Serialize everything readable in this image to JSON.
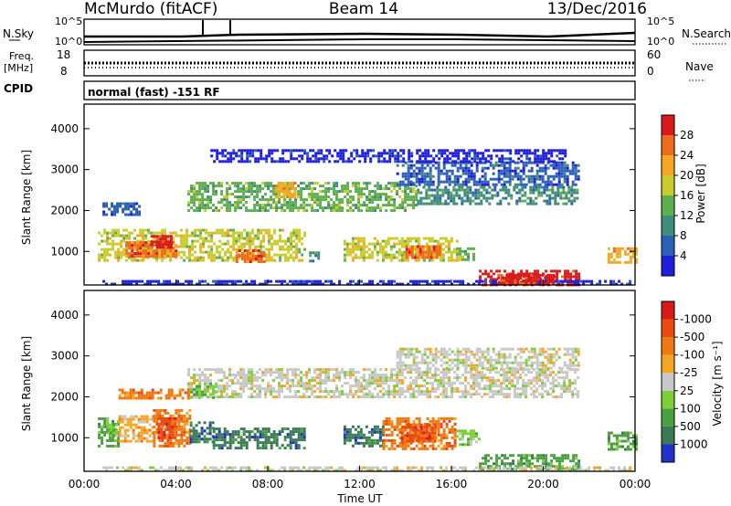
{
  "header": {
    "station": "McMurdo (fitACF)",
    "beam": "Beam 14",
    "date": "13/Dec/2016"
  },
  "sky_panel": {
    "left_label": "N.Sky",
    "right_label": "N.Search",
    "left_ticks": [
      "10^5",
      "10^0"
    ],
    "right_ticks": [
      "10^5",
      "10^0"
    ]
  },
  "freq_panel": {
    "left_label_1": "Freq.",
    "left_label_2": "[MHz]",
    "right_label": "Nave",
    "left_ticks": [
      "18",
      "8"
    ],
    "right_ticks": [
      "60",
      "0"
    ]
  },
  "cpid_panel": {
    "label": "CPID",
    "text": "normal (fast) -151 RF"
  },
  "chart_data": [
    {
      "type": "heatmap",
      "name": "power",
      "ylabel": "Slant Range [km]",
      "yticks": [
        1000,
        2000,
        3000,
        4000
      ],
      "ylim": [
        180,
        4600
      ],
      "xlim_hours": [
        0,
        24
      ],
      "colorbar": {
        "label": "Power [dB]",
        "ticks": [
          "4",
          "8",
          "12",
          "16",
          "20",
          "24",
          "28"
        ],
        "colors": [
          "#1e1edc",
          "#2c5fb8",
          "#3f8c7a",
          "#5fae50",
          "#c8cc2c",
          "#f5a623",
          "#ef6b1c",
          "#d81a1a"
        ]
      },
      "bands": [
        {
          "x": [
            0.6,
            9.6
          ],
          "y": [
            780,
            1550
          ],
          "color_index": 4
        },
        {
          "x": [
            9.8,
            10.2
          ],
          "y": [
            780,
            1000
          ],
          "color_index": 2
        },
        {
          "x": [
            11.3,
            16.2
          ],
          "y": [
            780,
            1350
          ],
          "color_index": 4
        },
        {
          "x": [
            16.2,
            17.0
          ],
          "y": [
            780,
            1100
          ],
          "color_index": 3
        },
        {
          "x": [
            22.8,
            24.0
          ],
          "y": [
            700,
            1100
          ],
          "color_index": 5
        },
        {
          "x": [
            17.2,
            21.5
          ],
          "y": [
            200,
            550
          ],
          "color_index": 7
        },
        {
          "x": [
            0.8,
            23.8
          ],
          "y": [
            180,
            300
          ],
          "color_index": 0
        },
        {
          "x": [
            0.8,
            2.4
          ],
          "y": [
            1900,
            2200
          ],
          "color_index": 1
        },
        {
          "x": [
            4.5,
            14.5
          ],
          "y": [
            2000,
            2700
          ],
          "color_index": 3
        },
        {
          "x": [
            14.5,
            21.5
          ],
          "y": [
            2150,
            2600
          ],
          "color_index": 2
        },
        {
          "x": [
            13.6,
            21.5
          ],
          "y": [
            2600,
            3200
          ],
          "color_index": 1
        },
        {
          "x": [
            5.5,
            21.0
          ],
          "y": [
            3200,
            3500
          ],
          "color_index": 0
        }
      ],
      "hotspots": [
        {
          "x": [
            1.8,
            4.0
          ],
          "y": [
            850,
            1250
          ],
          "color_index": 6
        },
        {
          "x": [
            2.9,
            3.8
          ],
          "y": [
            1100,
            1400
          ],
          "color_index": 7
        },
        {
          "x": [
            6.6,
            7.8
          ],
          "y": [
            750,
            1050
          ],
          "color_index": 6
        },
        {
          "x": [
            8.3,
            9.2
          ],
          "y": [
            2300,
            2700
          ],
          "color_index": 5
        },
        {
          "x": [
            14.0,
            15.5
          ],
          "y": [
            850,
            1150
          ],
          "color_index": 6
        },
        {
          "x": [
            18.0,
            20.5
          ],
          "y": [
            220,
            450
          ],
          "color_index": 7
        }
      ]
    },
    {
      "type": "heatmap",
      "name": "velocity",
      "ylabel": "Slant Range [km]",
      "yticks": [
        1000,
        2000,
        3000,
        4000
      ],
      "ylim": [
        180,
        4600
      ],
      "xlim_hours": [
        0,
        24
      ],
      "xlabel": "Time UT",
      "xticks": [
        "00:00",
        "04:00",
        "08:00",
        "12:00",
        "16:00",
        "20:00",
        "00:00"
      ],
      "colorbar": {
        "label": "Velocity [m s⁻¹]",
        "ticks": [
          "1000",
          "500",
          "100",
          "25",
          "-25",
          "-100",
          "-500",
          "-1000"
        ],
        "colors": [
          "#2030c8",
          "#3a7a54",
          "#4aa040",
          "#7dcf3a",
          "#c8c8c8",
          "#f5a623",
          "#f07a12",
          "#e84a12",
          "#d81a1a"
        ]
      },
      "bands": [
        {
          "x": [
            0.6,
            1.5
          ],
          "y": [
            800,
            1500
          ],
          "color_index": 2
        },
        {
          "x": [
            1.5,
            3.0
          ],
          "y": [
            900,
            1550
          ],
          "color_index": 5
        },
        {
          "x": [
            3.0,
            4.6
          ],
          "y": [
            800,
            1700
          ],
          "color_index": 6
        },
        {
          "x": [
            4.6,
            5.6
          ],
          "y": [
            900,
            1400
          ],
          "color_index": 1
        },
        {
          "x": [
            5.6,
            9.6
          ],
          "y": [
            780,
            1250
          ],
          "color_index": 1
        },
        {
          "x": [
            11.3,
            13.0
          ],
          "y": [
            800,
            1300
          ],
          "color_index": 1
        },
        {
          "x": [
            13.0,
            16.2
          ],
          "y": [
            700,
            1500
          ],
          "color_index": 6
        },
        {
          "x": [
            16.2,
            17.2
          ],
          "y": [
            800,
            1200
          ],
          "color_index": 3
        },
        {
          "x": [
            22.8,
            24.0
          ],
          "y": [
            700,
            1150
          ],
          "color_index": 2
        },
        {
          "x": [
            17.2,
            21.5
          ],
          "y": [
            200,
            600
          ],
          "color_index": 2
        },
        {
          "x": [
            0.8,
            23.8
          ],
          "y": [
            180,
            300
          ],
          "color_index": 4
        },
        {
          "x": [
            4.5,
            21.5
          ],
          "y": [
            2000,
            2700
          ],
          "color_index": 4
        },
        {
          "x": [
            4.5,
            5.8
          ],
          "y": [
            2000,
            2350
          ],
          "color_index": 3
        },
        {
          "x": [
            13.6,
            21.5
          ],
          "y": [
            2700,
            3200
          ],
          "color_index": 4
        },
        {
          "x": [
            1.5,
            4.5
          ],
          "y": [
            1950,
            2200
          ],
          "color_index": 6
        }
      ],
      "hotspots": [
        {
          "x": [
            3.2,
            4.0
          ],
          "y": [
            1000,
            1500
          ],
          "color_index": 7
        },
        {
          "x": [
            13.8,
            15.3
          ],
          "y": [
            900,
            1350
          ],
          "color_index": 7
        },
        {
          "x": [
            1.0,
            1.4
          ],
          "y": [
            1050,
            1350
          ],
          "color_index": 3
        }
      ]
    }
  ]
}
